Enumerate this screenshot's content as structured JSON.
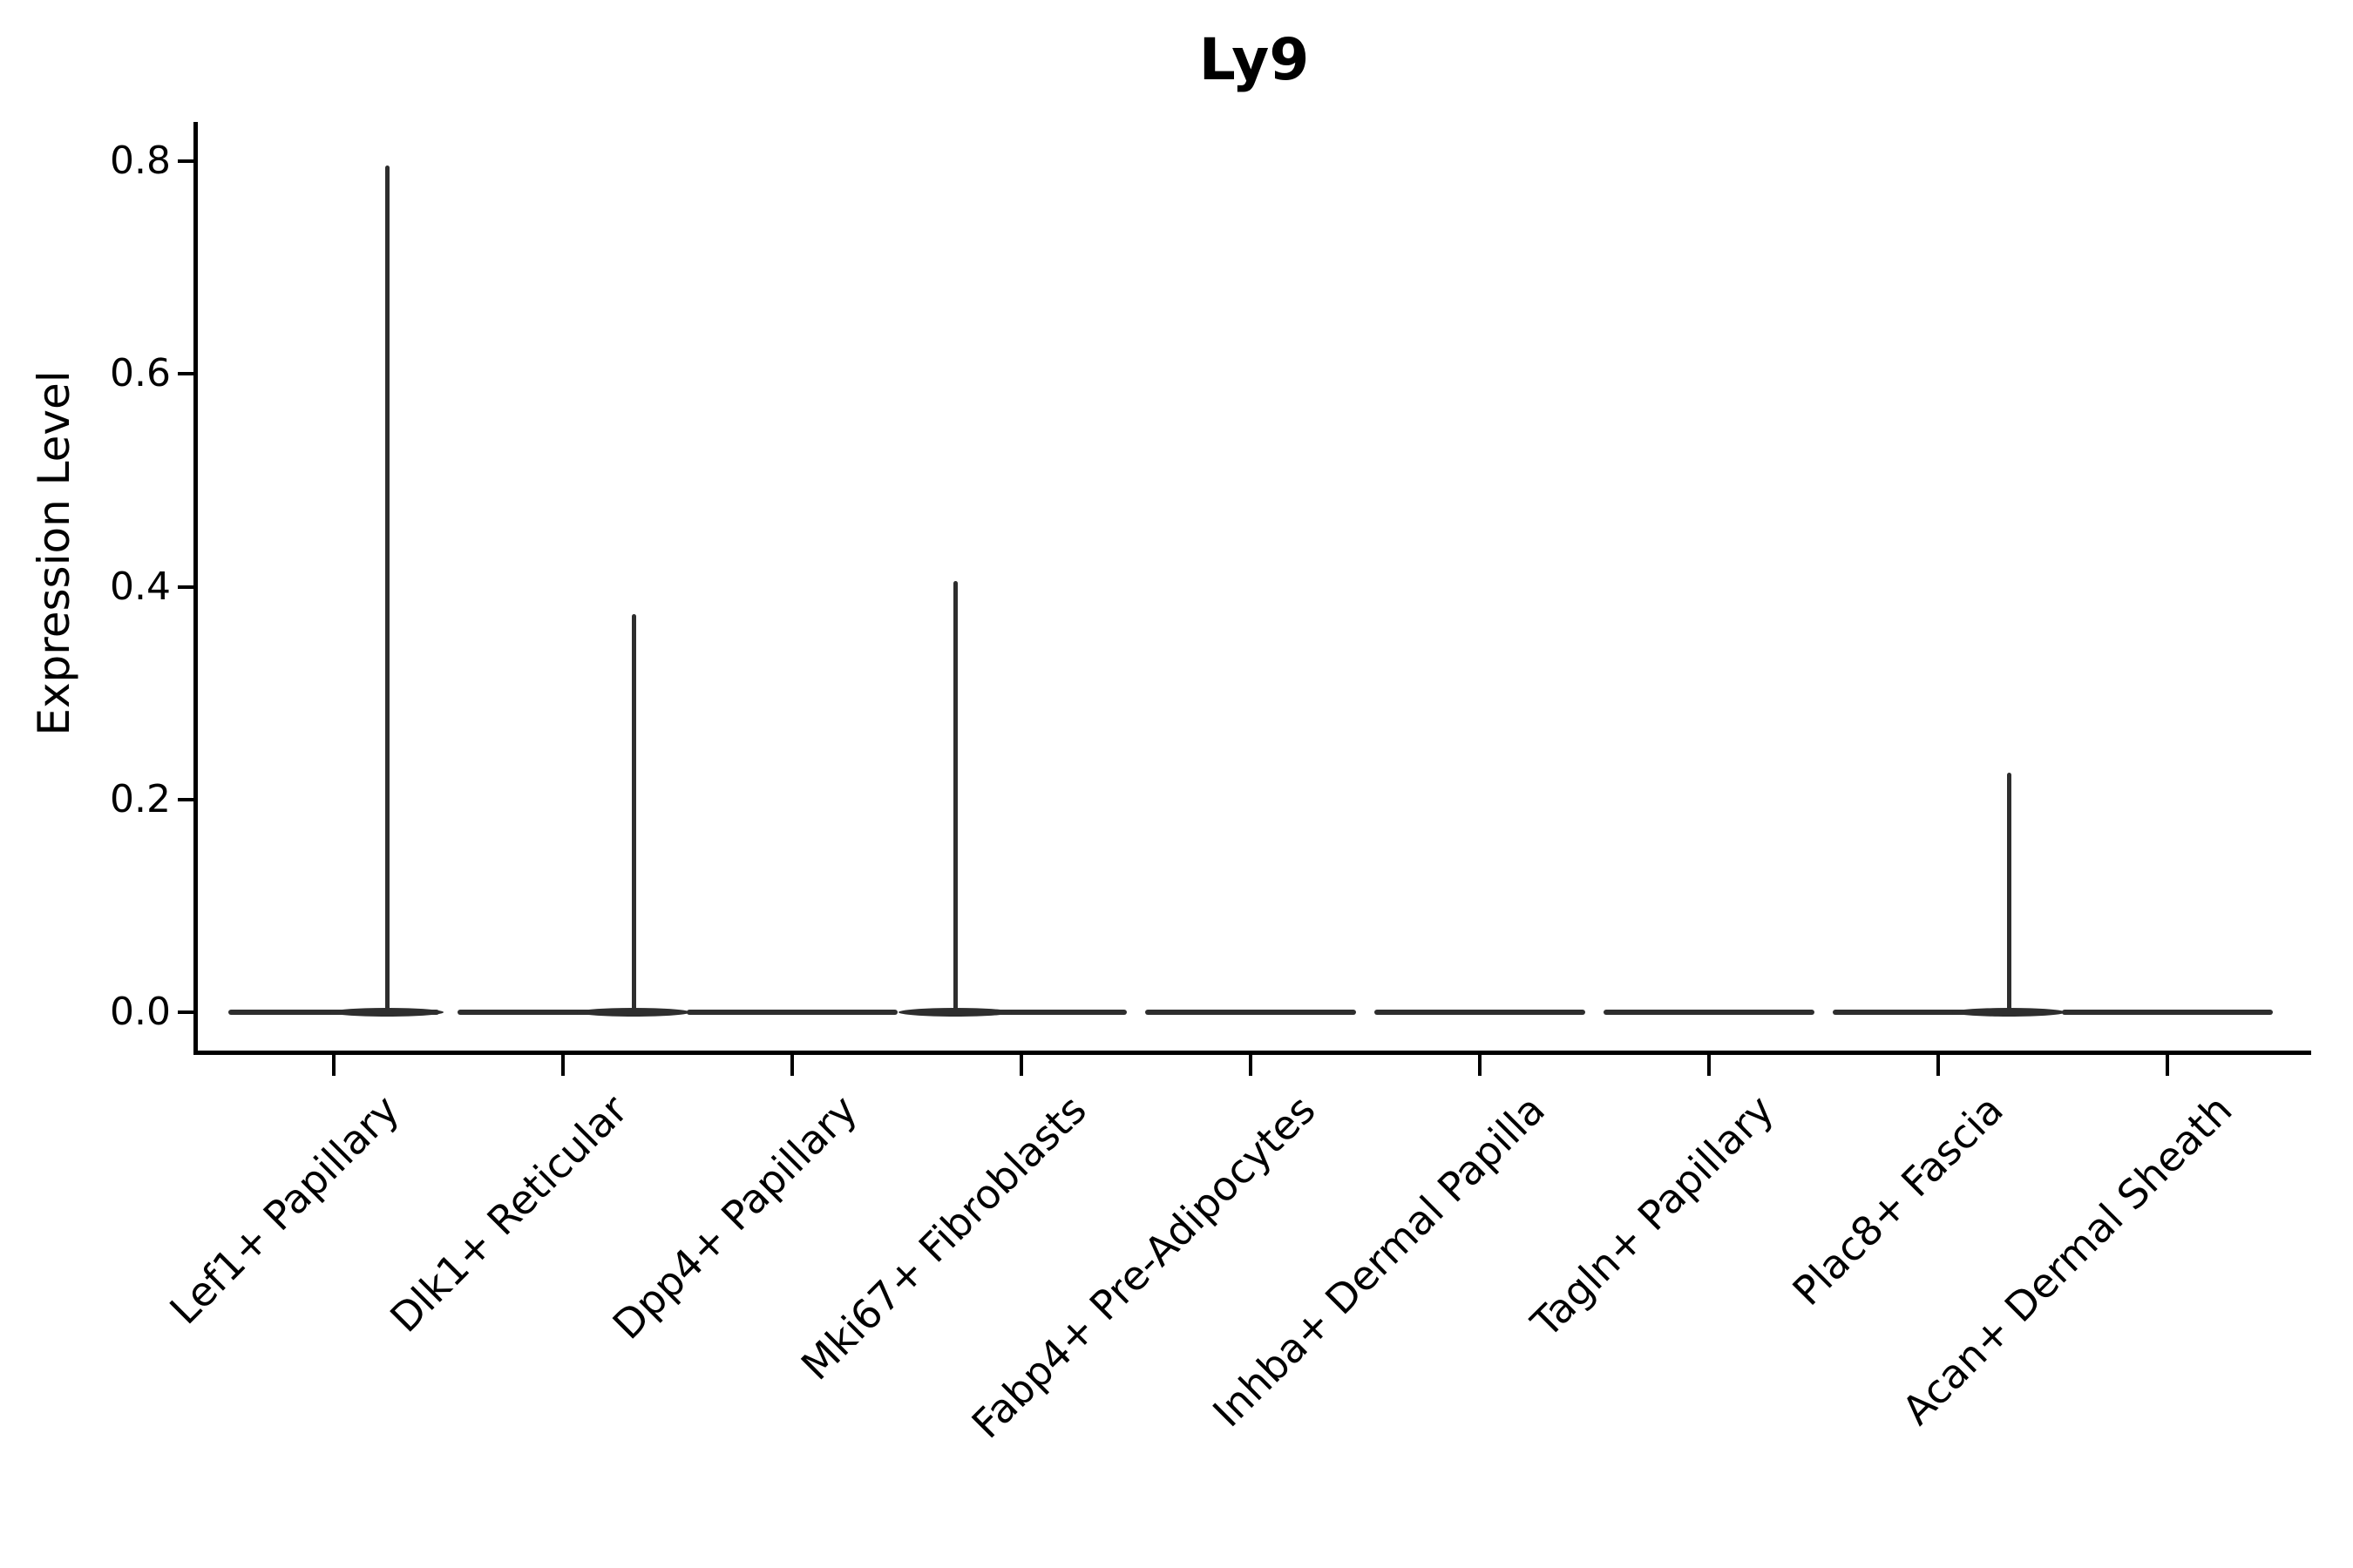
{
  "chart_data": {
    "type": "violin",
    "title": "Ly9",
    "ylabel": "Expression Level",
    "xlabel": "",
    "legend": "none",
    "grid": false,
    "background": "#ffffff",
    "colors": {
      "violin": "#2e2e2e",
      "axis": "#000000",
      "text": "#000000"
    },
    "ylim": [
      -0.04,
      0.84
    ],
    "yticks": [
      0.0,
      0.2,
      0.4,
      0.6,
      0.8
    ],
    "ytick_labels": [
      "0.0",
      "0.2",
      "0.4",
      "0.6",
      "0.8"
    ],
    "categories": [
      "Lef1+ Papillary",
      "Dlk1+ Reticular",
      "Dpp4+ Papillary",
      "Mki67+ Fibroblasts",
      "Fabp4+ Pre-Adipocytes",
      "Inhba+ Dermal Papilla",
      "Tagln+ Papillary",
      "Plac8+ Fascia",
      "Acan+ Dermal Sheath"
    ],
    "series": [
      {
        "name": "Lef1+ Papillary",
        "bulk_at": 0.0,
        "max_expression": 0.796,
        "has_spike": true,
        "spike_dx": 61
      },
      {
        "name": "Dlk1+ Reticular",
        "bulk_at": 0.0,
        "max_expression": 0.374,
        "has_spike": true,
        "spike_dx": 81
      },
      {
        "name": "Dpp4+ Papillary",
        "bulk_at": 0.0,
        "max_expression": 0.0,
        "has_spike": false,
        "spike_dx": 0
      },
      {
        "name": "Mki67+ Fibroblasts",
        "bulk_at": 0.0,
        "max_expression": 0.405,
        "has_spike": true,
        "spike_dx": -76
      },
      {
        "name": "Fabp4+ Pre-Adipocytes",
        "bulk_at": 0.0,
        "max_expression": 0.0,
        "has_spike": false,
        "spike_dx": 0
      },
      {
        "name": "Inhba+ Dermal Papilla",
        "bulk_at": 0.0,
        "max_expression": 0.0,
        "has_spike": false,
        "spike_dx": 0
      },
      {
        "name": "Tagln+ Papillary",
        "bulk_at": 0.0,
        "max_expression": 0.0,
        "has_spike": false,
        "spike_dx": 0
      },
      {
        "name": "Plac8+ Fascia",
        "bulk_at": 0.0,
        "max_expression": 0.225,
        "has_spike": true,
        "spike_dx": 81
      },
      {
        "name": "Acan+ Dermal Sheath",
        "bulk_at": 0.0,
        "max_expression": 0.0,
        "has_spike": false,
        "spike_dx": 0
      }
    ],
    "description": "Violin plot of Ly9 expression; each violin is collapsed into a flat body at 0 with a thin spike rising to the maximum expression value."
  }
}
